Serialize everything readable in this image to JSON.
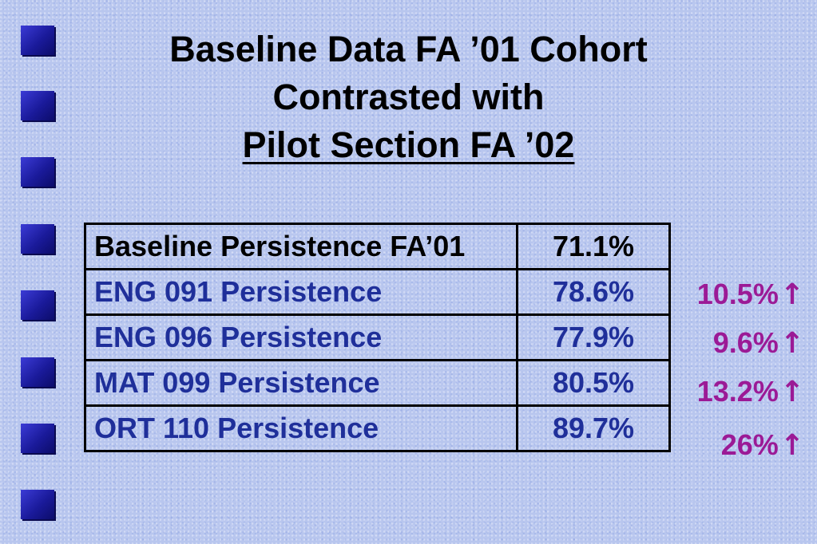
{
  "title": {
    "line1": "Baseline Data FA ’01 Cohort",
    "line2": "Contrasted with",
    "line3": "Pilot Section FA ’02"
  },
  "table": {
    "rows": [
      {
        "label": "Baseline Persistence FA’01",
        "value": "71.1%"
      },
      {
        "label": "ENG 091 Persistence",
        "value": "78.6%"
      },
      {
        "label": "ENG 096 Persistence",
        "value": "77.9%"
      },
      {
        "label": "MAT 099 Persistence",
        "value": "80.5%"
      },
      {
        "label": "ORT 110 Persistence",
        "value": "89.7%"
      }
    ]
  },
  "changes": [
    {
      "value": "10.5%",
      "icon": "up-arrow-icon"
    },
    {
      "value": "9.6%",
      "icon": "up-arrow-icon"
    },
    {
      "value": "13.2%",
      "icon": "up-arrow-icon"
    },
    {
      "value": "26%",
      "icon": "up-arrow-icon"
    }
  ],
  "arrow_glyph": "↑",
  "colors": {
    "title": "#000000",
    "course_text": "#1f2f9a",
    "change_text": "#9b1a96",
    "bullet": "#1a1a9a",
    "background": "#b8c6ee"
  }
}
